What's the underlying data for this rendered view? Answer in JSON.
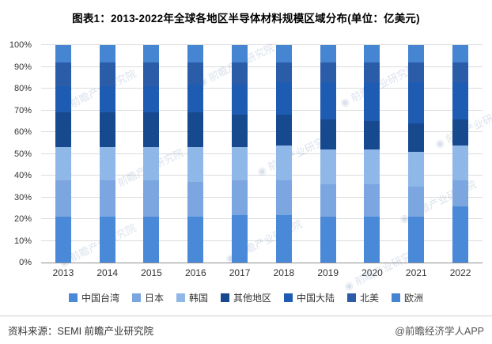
{
  "header": {
    "title": "图表1：2013-2022年全球各地区半导体材料规模区域分布(单位：亿美元)"
  },
  "chart_data": {
    "type": "bar",
    "variant": "stacked-percent-column",
    "title": "图表1：2013-2022年全球各地区半导体材料规模区域分布(单位：亿美元)",
    "categories": [
      "2013",
      "2014",
      "2015",
      "2016",
      "2017",
      "2018",
      "2019",
      "2020",
      "2021",
      "2022"
    ],
    "series": [
      {
        "name": "中国台湾",
        "color": "#4a89d8",
        "values": [
          21,
          21,
          21,
          21,
          22,
          22,
          21,
          21,
          21,
          26
        ]
      },
      {
        "name": "日本",
        "color": "#7ba6e0",
        "values": [
          17,
          17,
          17,
          16,
          16,
          16,
          15,
          15,
          14,
          12
        ]
      },
      {
        "name": "韩国",
        "color": "#8fb7e8",
        "values": [
          15,
          15,
          15,
          16,
          15,
          16,
          16,
          16,
          16,
          16
        ]
      },
      {
        "name": "其他地区",
        "color": "#17498f",
        "values": [
          16,
          16,
          16,
          16,
          15,
          14,
          14,
          13,
          13,
          12
        ]
      },
      {
        "name": "中国大陆",
        "color": "#1e5cb3",
        "values": [
          12,
          12,
          12,
          13,
          14,
          15,
          17,
          18,
          19,
          17
        ]
      },
      {
        "name": "北美",
        "color": "#2a5ca8",
        "values": [
          11,
          11,
          11,
          10,
          10,
          9,
          9,
          9,
          9,
          9
        ]
      },
      {
        "name": "欧洲",
        "color": "#4585d2",
        "values": [
          8,
          8,
          8,
          8,
          8,
          8,
          8,
          8,
          8,
          8
        ]
      }
    ],
    "y_ticks": [
      "0%",
      "10%",
      "20%",
      "30%",
      "40%",
      "50%",
      "60%",
      "70%",
      "80%",
      "90%",
      "100%"
    ],
    "ylim": [
      0,
      100
    ],
    "grid": true,
    "legend_position": "bottom",
    "xlabel": "",
    "ylabel": ""
  },
  "watermark": {
    "text": "前瞻产业研究院",
    "icon": "circle-logo-icon",
    "icon_glyph": "◉"
  },
  "footer": {
    "source": "资料来源：SEMI 前瞻产业研究院",
    "brand": "@前瞻经济学人APP"
  }
}
